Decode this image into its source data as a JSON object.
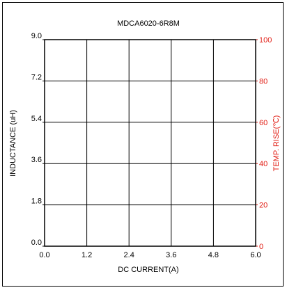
{
  "chart_data": {
    "type": "line",
    "title": "MDCA6020-6R8M",
    "xlabel": "DC CURRENT(A)",
    "ylabel": "INDUCTANCE (uH)",
    "ylabel_right": "TEMP. RISE(℃)",
    "xlim": [
      0,
      6
    ],
    "ylim": [
      0,
      9
    ],
    "ylim_right": [
      0,
      100
    ],
    "x_ticks": [
      "0.0",
      "1.2",
      "2.4",
      "3.6",
      "4.8",
      "6.0"
    ],
    "y_ticks": [
      "0.0",
      "1.8",
      "3.6",
      "5.4",
      "7.2",
      "9.0"
    ],
    "y_ticks_right": [
      "0",
      "20",
      "40",
      "60",
      "80",
      "100"
    ],
    "grid": true,
    "series": []
  },
  "colors": {
    "axis": "#000000",
    "right_axis": "#e2231a",
    "grid": "#000000"
  }
}
